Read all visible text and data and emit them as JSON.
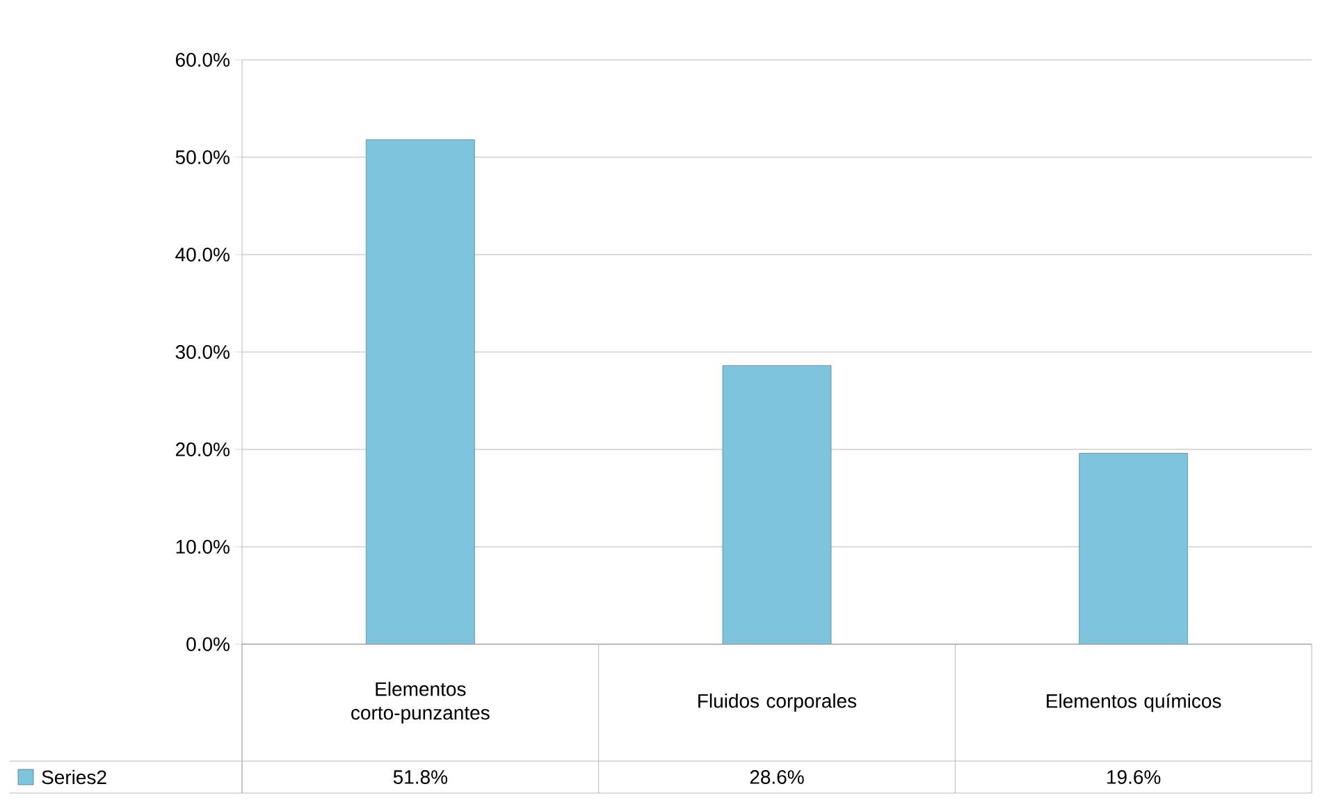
{
  "chart_data": {
    "type": "bar",
    "categories": [
      "Elementos corto-punzantes",
      "Fluidos corporales",
      "Elementos químicos"
    ],
    "series": [
      {
        "name": "Series2",
        "color": "#7ec4dc",
        "values": [
          51.8,
          28.6,
          19.6
        ],
        "value_labels": [
          "51.8%",
          "28.6%",
          "19.6%"
        ]
      }
    ],
    "ylim": [
      0,
      60
    ],
    "yticks": [
      {
        "value": 0,
        "label": "0.0%"
      },
      {
        "value": 10,
        "label": "10.0%"
      },
      {
        "value": 20,
        "label": "20.0%"
      },
      {
        "value": 30,
        "label": "30.0%"
      },
      {
        "value": 40,
        "label": "40.0%"
      },
      {
        "value": 50,
        "label": "50.0%"
      },
      {
        "value": 60,
        "label": "60.0%"
      }
    ],
    "grid": "y",
    "legend": "bottom"
  }
}
